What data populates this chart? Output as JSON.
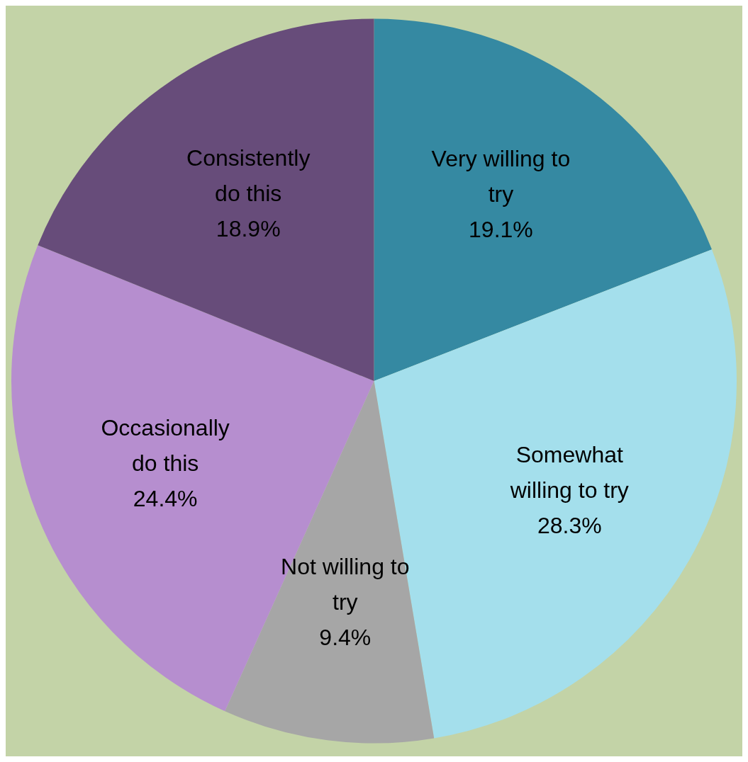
{
  "chart_data": {
    "type": "pie",
    "categories": [
      "Very willing to try",
      "Somewhat willing to try",
      "Not willing to try",
      "Occasionally do this",
      "Consistently do this"
    ],
    "values": [
      19.1,
      28.3,
      9.4,
      24.4,
      18.9
    ],
    "colors": [
      "#3589a2",
      "#a4dfec",
      "#a6a6a6",
      "#b68ecf",
      "#674c7a"
    ],
    "value_labels": [
      "19.1%",
      "28.3%",
      "9.4%",
      "24.4%",
      "18.9%"
    ],
    "legend": false
  }
}
